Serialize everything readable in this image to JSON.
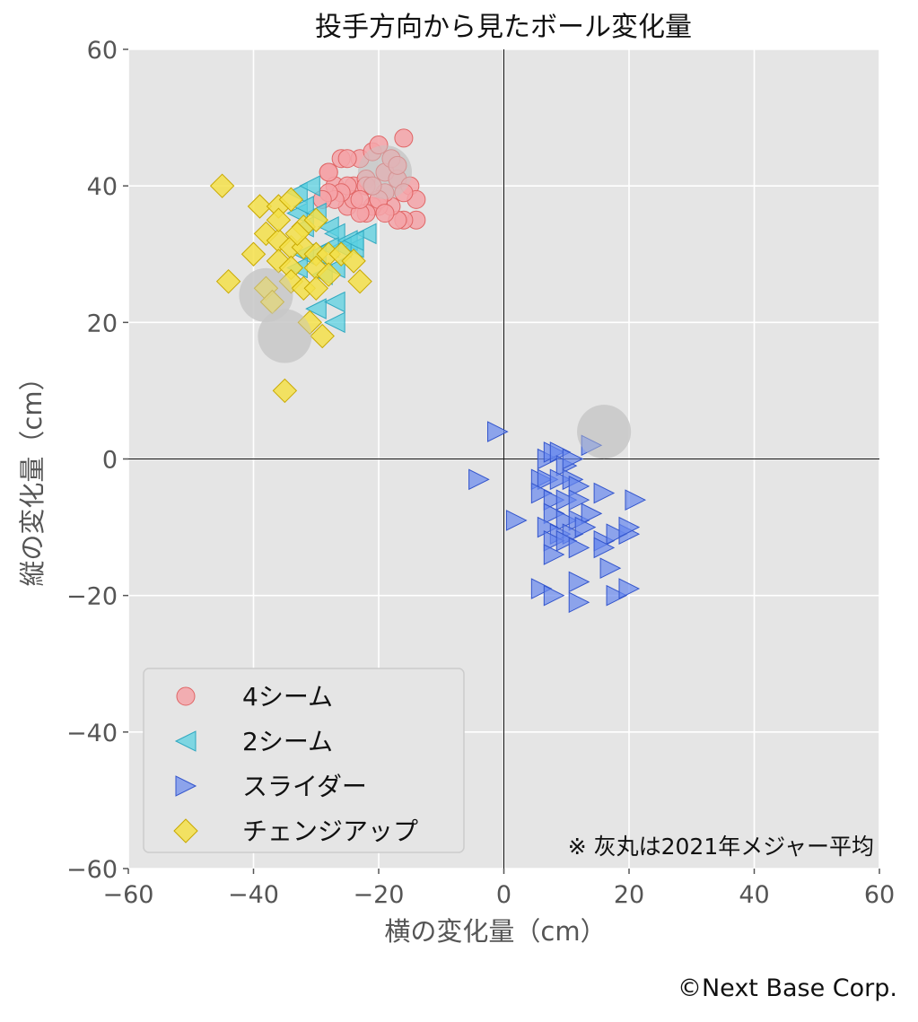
{
  "chart_data": {
    "type": "scatter",
    "title": "投手方向から見たボール変化量",
    "xlabel": "横の変化量（cm）",
    "ylabel": "縦の変化量（cm）",
    "xlim": [
      -60,
      60
    ],
    "ylim": [
      -60,
      60
    ],
    "xticks": [
      -60,
      -40,
      -20,
      0,
      20,
      40,
      60
    ],
    "yticks": [
      -60,
      -40,
      -20,
      0,
      20,
      40,
      60
    ],
    "grid": true,
    "legend_position": "lower-left",
    "note": "※ 灰丸は2021年メジャー平均",
    "credit": "©Next Base Corp.",
    "series": [
      {
        "name": "4シーム",
        "marker": "circle",
        "color": "#f4a3a8",
        "edge": "#e06666",
        "points": [
          [
            -28,
            42
          ],
          [
            -27,
            40
          ],
          [
            -26,
            44
          ],
          [
            -25,
            37
          ],
          [
            -24,
            40
          ],
          [
            -23,
            44
          ],
          [
            -22,
            41
          ],
          [
            -21,
            45
          ],
          [
            -20,
            46
          ],
          [
            -19,
            42
          ],
          [
            -18,
            44
          ],
          [
            -17,
            41
          ],
          [
            -16,
            47
          ],
          [
            -15,
            40
          ],
          [
            -14,
            38
          ],
          [
            -14,
            35
          ],
          [
            -16,
            35
          ],
          [
            -17,
            35
          ],
          [
            -18,
            37
          ],
          [
            -19,
            39
          ],
          [
            -20,
            37
          ],
          [
            -21,
            37
          ],
          [
            -22,
            36
          ],
          [
            -23,
            36
          ],
          [
            -24,
            38
          ],
          [
            -25,
            40
          ],
          [
            -26,
            39
          ],
          [
            -27,
            38
          ],
          [
            -28,
            39
          ],
          [
            -29,
            38
          ],
          [
            -28,
            42
          ],
          [
            -25,
            44
          ],
          [
            -22,
            40
          ],
          [
            -20,
            38
          ],
          [
            -19,
            36
          ],
          [
            -21,
            40
          ],
          [
            -23,
            38
          ],
          [
            -17,
            43
          ],
          [
            -16,
            39
          ]
        ]
      },
      {
        "name": "2シーム",
        "marker": "triangle-left",
        "color": "#5bd0e0",
        "edge": "#30a8c0",
        "points": [
          [
            -33,
            39
          ],
          [
            -31,
            40
          ],
          [
            -33,
            36
          ],
          [
            -30,
            36
          ],
          [
            -32,
            34
          ],
          [
            -28,
            34
          ],
          [
            -27,
            33
          ],
          [
            -25,
            32
          ],
          [
            -22,
            33
          ],
          [
            -24,
            31
          ],
          [
            -26,
            31
          ],
          [
            -28,
            31
          ],
          [
            -30,
            30
          ],
          [
            -32,
            30
          ],
          [
            -33,
            28
          ],
          [
            -29,
            27
          ],
          [
            -27,
            28
          ],
          [
            -30,
            22
          ],
          [
            -27,
            23
          ],
          [
            -27,
            20
          ],
          [
            -32,
            37
          ],
          [
            -24,
            32
          ]
        ]
      },
      {
        "name": "スライダー",
        "marker": "triangle-right",
        "color": "#6688ee",
        "edge": "#3355cc",
        "points": [
          [
            -1,
            4
          ],
          [
            -4,
            -3
          ],
          [
            2,
            -9
          ],
          [
            7,
            0
          ],
          [
            8,
            1
          ],
          [
            9,
            1
          ],
          [
            10,
            -1
          ],
          [
            11,
            0
          ],
          [
            14,
            2
          ],
          [
            6,
            -3
          ],
          [
            7,
            -3
          ],
          [
            9,
            -3
          ],
          [
            11,
            -3
          ],
          [
            12,
            -4
          ],
          [
            6,
            -5
          ],
          [
            8,
            -6
          ],
          [
            10,
            -6
          ],
          [
            12,
            -6
          ],
          [
            16,
            -5
          ],
          [
            21,
            -6
          ],
          [
            8,
            -8
          ],
          [
            10,
            -9
          ],
          [
            12,
            -9
          ],
          [
            14,
            -8
          ],
          [
            7,
            -10
          ],
          [
            9,
            -11
          ],
          [
            11,
            -11
          ],
          [
            13,
            -10
          ],
          [
            16,
            -12
          ],
          [
            18,
            -11
          ],
          [
            20,
            -11
          ],
          [
            20,
            -10
          ],
          [
            8,
            -12
          ],
          [
            10,
            -12
          ],
          [
            12,
            -13
          ],
          [
            16,
            -13
          ],
          [
            8,
            -14
          ],
          [
            17,
            -16
          ],
          [
            12,
            -18
          ],
          [
            6,
            -19
          ],
          [
            8,
            -20
          ],
          [
            12,
            -21
          ],
          [
            18,
            -20
          ],
          [
            20,
            -19
          ]
        ]
      },
      {
        "name": "チェンジアップ",
        "marker": "diamond",
        "color": "#f5e04a",
        "edge": "#c8a800",
        "points": [
          [
            -45,
            40
          ],
          [
            -39,
            37
          ],
          [
            -36,
            37
          ],
          [
            -34,
            38
          ],
          [
            -32,
            34
          ],
          [
            -30,
            35
          ],
          [
            -38,
            33
          ],
          [
            -36,
            32
          ],
          [
            -34,
            31
          ],
          [
            -32,
            31
          ],
          [
            -30,
            30
          ],
          [
            -28,
            30
          ],
          [
            -26,
            30
          ],
          [
            -24,
            29
          ],
          [
            -40,
            30
          ],
          [
            -36,
            29
          ],
          [
            -34,
            28
          ],
          [
            -30,
            28
          ],
          [
            -28,
            27
          ],
          [
            -23,
            26
          ],
          [
            -44,
            26
          ],
          [
            -38,
            25
          ],
          [
            -34,
            26
          ],
          [
            -32,
            25
          ],
          [
            -30,
            25
          ],
          [
            -37,
            23
          ],
          [
            -31,
            20
          ],
          [
            -29,
            18
          ],
          [
            -35,
            10
          ],
          [
            -36,
            35
          ],
          [
            -33,
            33
          ]
        ]
      },
      {
        "name": "",
        "marker": "circle-large",
        "color": "#c8c8c8",
        "edge": "#c8c8c8",
        "points": [
          [
            -19,
            42
          ],
          [
            -38,
            24
          ],
          [
            -35,
            18
          ],
          [
            16,
            4
          ]
        ]
      }
    ]
  }
}
